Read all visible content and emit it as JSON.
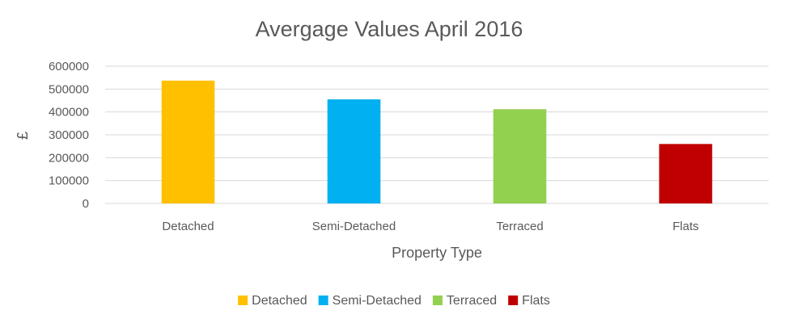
{
  "chart_data": {
    "type": "bar",
    "title": "Avergage Values April 2016",
    "xlabel": "Property Type",
    "ylabel": "£",
    "categories": [
      "Detached",
      "Semi-Detached",
      "Terraced",
      "Flats"
    ],
    "values": [
      537000,
      455000,
      412000,
      260000
    ],
    "colors": [
      "#ffc000",
      "#00b0f0",
      "#92d050",
      "#c00000"
    ],
    "ylim": [
      0,
      600000
    ],
    "yticks": [
      "0",
      "100000",
      "200000",
      "300000",
      "400000",
      "500000",
      "600000"
    ],
    "grid": true,
    "legend": {
      "position": "bottom",
      "entries": [
        "Detached",
        "Semi-Detached",
        "Terraced",
        "Flats"
      ]
    }
  }
}
